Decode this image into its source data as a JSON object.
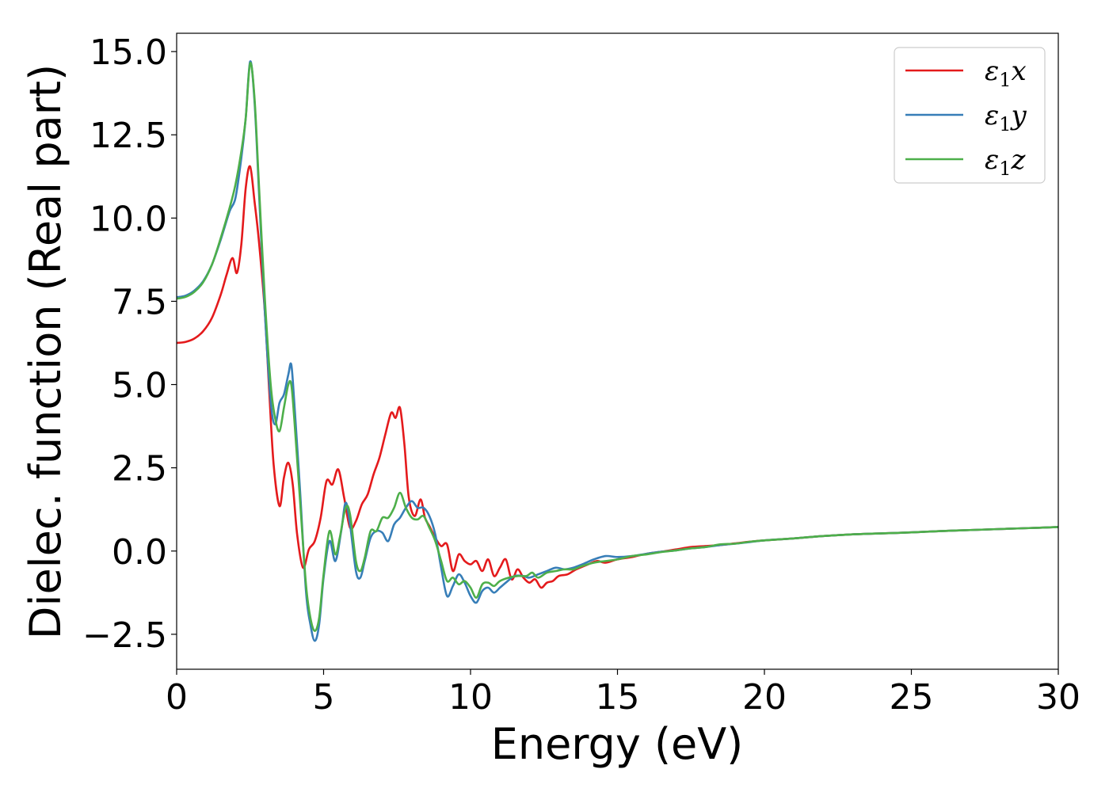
{
  "chart_data": {
    "type": "line",
    "title": "",
    "xlabel": "Energy (eV)",
    "ylabel": "Dielec. function (Real part)",
    "xlim": [
      0,
      30
    ],
    "ylim": [
      -3.55,
      15.55
    ],
    "xticks": [
      0,
      5,
      10,
      15,
      20,
      25,
      30
    ],
    "xtick_labels": [
      "0",
      "5",
      "10",
      "15",
      "20",
      "25",
      "30"
    ],
    "yticks": [
      -2.5,
      0.0,
      2.5,
      5.0,
      7.5,
      10.0,
      12.5,
      15.0
    ],
    "ytick_labels": [
      "−2.5",
      "0.0",
      "2.5",
      "5.0",
      "7.5",
      "10.0",
      "12.5",
      "15.0"
    ],
    "grid": false,
    "legend_position": "top-right",
    "series": [
      {
        "name": "ε₁x",
        "legend_main": "ε",
        "legend_sub": "1",
        "legend_tail": "x",
        "color": "#e41a1c",
        "points": [
          [
            0,
            6.25
          ],
          [
            0.3,
            6.28
          ],
          [
            0.6,
            6.38
          ],
          [
            0.9,
            6.6
          ],
          [
            1.2,
            7.0
          ],
          [
            1.5,
            7.7
          ],
          [
            1.7,
            8.3
          ],
          [
            1.9,
            8.8
          ],
          [
            2.05,
            8.35
          ],
          [
            2.2,
            9.2
          ],
          [
            2.35,
            10.9
          ],
          [
            2.5,
            11.55
          ],
          [
            2.65,
            10.5
          ],
          [
            2.8,
            9.3
          ],
          [
            3.0,
            7.2
          ],
          [
            3.15,
            4.8
          ],
          [
            3.3,
            2.6
          ],
          [
            3.5,
            1.35
          ],
          [
            3.65,
            2.2
          ],
          [
            3.8,
            2.65
          ],
          [
            3.95,
            2.0
          ],
          [
            4.1,
            0.5
          ],
          [
            4.3,
            -0.5
          ],
          [
            4.5,
            0.05
          ],
          [
            4.7,
            0.3
          ],
          [
            4.9,
            1.0
          ],
          [
            5.1,
            2.1
          ],
          [
            5.3,
            2.0
          ],
          [
            5.5,
            2.45
          ],
          [
            5.7,
            1.6
          ],
          [
            5.9,
            0.7
          ],
          [
            6.1,
            0.9
          ],
          [
            6.3,
            1.4
          ],
          [
            6.5,
            1.7
          ],
          [
            6.7,
            2.3
          ],
          [
            6.9,
            2.8
          ],
          [
            7.1,
            3.5
          ],
          [
            7.3,
            4.15
          ],
          [
            7.45,
            4.0
          ],
          [
            7.6,
            4.3
          ],
          [
            7.75,
            3.2
          ],
          [
            7.9,
            1.6
          ],
          [
            8.1,
            1.05
          ],
          [
            8.3,
            1.55
          ],
          [
            8.45,
            1.0
          ],
          [
            8.6,
            0.75
          ],
          [
            8.8,
            0.4
          ],
          [
            9.0,
            0.15
          ],
          [
            9.2,
            0.2
          ],
          [
            9.4,
            -0.6
          ],
          [
            9.6,
            -0.1
          ],
          [
            9.8,
            -0.3
          ],
          [
            10.0,
            -0.4
          ],
          [
            10.2,
            -0.3
          ],
          [
            10.4,
            -0.6
          ],
          [
            10.6,
            -0.25
          ],
          [
            10.8,
            -0.75
          ],
          [
            11.0,
            -0.5
          ],
          [
            11.2,
            -0.25
          ],
          [
            11.4,
            -0.85
          ],
          [
            11.6,
            -0.55
          ],
          [
            11.8,
            -0.8
          ],
          [
            12.0,
            -0.95
          ],
          [
            12.2,
            -0.85
          ],
          [
            12.4,
            -1.1
          ],
          [
            12.6,
            -0.95
          ],
          [
            12.8,
            -0.9
          ],
          [
            13.0,
            -0.75
          ],
          [
            13.3,
            -0.7
          ],
          [
            13.6,
            -0.55
          ],
          [
            14.0,
            -0.4
          ],
          [
            14.3,
            -0.3
          ],
          [
            14.6,
            -0.35
          ],
          [
            15.0,
            -0.25
          ],
          [
            15.5,
            -0.18
          ],
          [
            16.0,
            -0.08
          ],
          [
            16.5,
            -0.02
          ],
          [
            17.0,
            0.05
          ],
          [
            17.5,
            0.12
          ],
          [
            18.0,
            0.15
          ],
          [
            18.5,
            0.18
          ],
          [
            19.0,
            0.23
          ],
          [
            19.5,
            0.28
          ],
          [
            20.0,
            0.32
          ],
          [
            21.0,
            0.38
          ],
          [
            22.0,
            0.45
          ],
          [
            23.0,
            0.5
          ],
          [
            24.0,
            0.53
          ],
          [
            25.0,
            0.56
          ],
          [
            26.0,
            0.6
          ],
          [
            27.0,
            0.63
          ],
          [
            28.0,
            0.66
          ],
          [
            29.0,
            0.69
          ],
          [
            30.0,
            0.72
          ]
        ]
      },
      {
        "name": "ε₁y",
        "legend_main": "ε",
        "legend_sub": "1",
        "legend_tail": "y",
        "color": "#377eb8",
        "points": [
          [
            0,
            7.62
          ],
          [
            0.3,
            7.67
          ],
          [
            0.6,
            7.82
          ],
          [
            0.9,
            8.1
          ],
          [
            1.2,
            8.6
          ],
          [
            1.5,
            9.35
          ],
          [
            1.8,
            10.2
          ],
          [
            2.0,
            10.6
          ],
          [
            2.2,
            11.8
          ],
          [
            2.35,
            13.0
          ],
          [
            2.5,
            14.7
          ],
          [
            2.65,
            13.5
          ],
          [
            2.8,
            10.8
          ],
          [
            3.0,
            7.2
          ],
          [
            3.2,
            4.5
          ],
          [
            3.35,
            3.8
          ],
          [
            3.5,
            4.45
          ],
          [
            3.65,
            4.7
          ],
          [
            3.8,
            5.3
          ],
          [
            3.9,
            5.6
          ],
          [
            4.0,
            4.5
          ],
          [
            4.2,
            1.8
          ],
          [
            4.4,
            -1.2
          ],
          [
            4.55,
            -2.2
          ],
          [
            4.7,
            -2.7
          ],
          [
            4.85,
            -2.2
          ],
          [
            5.0,
            -0.8
          ],
          [
            5.2,
            0.3
          ],
          [
            5.4,
            -0.3
          ],
          [
            5.6,
            0.6
          ],
          [
            5.75,
            1.45
          ],
          [
            5.9,
            0.8
          ],
          [
            6.1,
            -0.6
          ],
          [
            6.25,
            -0.8
          ],
          [
            6.4,
            -0.3
          ],
          [
            6.6,
            0.4
          ],
          [
            6.8,
            0.6
          ],
          [
            7.0,
            0.55
          ],
          [
            7.2,
            0.3
          ],
          [
            7.4,
            0.8
          ],
          [
            7.6,
            1.0
          ],
          [
            7.8,
            1.3
          ],
          [
            8.0,
            1.5
          ],
          [
            8.2,
            1.3
          ],
          [
            8.4,
            1.3
          ],
          [
            8.6,
            1.05
          ],
          [
            8.8,
            0.5
          ],
          [
            9.0,
            -0.5
          ],
          [
            9.2,
            -1.35
          ],
          [
            9.4,
            -1.05
          ],
          [
            9.6,
            -0.7
          ],
          [
            9.8,
            -0.95
          ],
          [
            10.0,
            -1.35
          ],
          [
            10.2,
            -1.55
          ],
          [
            10.4,
            -1.2
          ],
          [
            10.6,
            -1.1
          ],
          [
            10.8,
            -1.25
          ],
          [
            11.0,
            -1.1
          ],
          [
            11.2,
            -0.95
          ],
          [
            11.5,
            -0.75
          ],
          [
            11.8,
            -0.75
          ],
          [
            12.0,
            -0.8
          ],
          [
            12.3,
            -0.7
          ],
          [
            12.6,
            -0.6
          ],
          [
            12.9,
            -0.5
          ],
          [
            13.2,
            -0.55
          ],
          [
            13.5,
            -0.5
          ],
          [
            13.8,
            -0.4
          ],
          [
            14.2,
            -0.25
          ],
          [
            14.6,
            -0.15
          ],
          [
            15.0,
            -0.18
          ],
          [
            15.5,
            -0.15
          ],
          [
            16.0,
            -0.08
          ],
          [
            16.5,
            -0.02
          ],
          [
            17.0,
            0.02
          ],
          [
            17.5,
            0.08
          ],
          [
            18.0,
            0.12
          ],
          [
            18.5,
            0.18
          ],
          [
            19.0,
            0.22
          ],
          [
            19.5,
            0.27
          ],
          [
            20.0,
            0.32
          ],
          [
            21.0,
            0.38
          ],
          [
            22.0,
            0.45
          ],
          [
            23.0,
            0.5
          ],
          [
            24.0,
            0.53
          ],
          [
            25.0,
            0.56
          ],
          [
            26.0,
            0.6
          ],
          [
            27.0,
            0.63
          ],
          [
            28.0,
            0.66
          ],
          [
            29.0,
            0.69
          ],
          [
            30.0,
            0.72
          ]
        ]
      },
      {
        "name": "ε₁z",
        "legend_main": "ε",
        "legend_sub": "1",
        "legend_tail": "z",
        "color": "#4daf4a",
        "points": [
          [
            0,
            7.58
          ],
          [
            0.3,
            7.63
          ],
          [
            0.6,
            7.78
          ],
          [
            0.9,
            8.07
          ],
          [
            1.2,
            8.6
          ],
          [
            1.5,
            9.4
          ],
          [
            1.8,
            10.3
          ],
          [
            2.0,
            11.0
          ],
          [
            2.2,
            12.0
          ],
          [
            2.35,
            13.0
          ],
          [
            2.5,
            14.65
          ],
          [
            2.65,
            13.6
          ],
          [
            2.8,
            11.0
          ],
          [
            3.0,
            7.6
          ],
          [
            3.2,
            5.0
          ],
          [
            3.35,
            4.0
          ],
          [
            3.5,
            3.6
          ],
          [
            3.65,
            4.3
          ],
          [
            3.8,
            5.0
          ],
          [
            3.9,
            5.0
          ],
          [
            4.0,
            4.0
          ],
          [
            4.2,
            1.5
          ],
          [
            4.4,
            -1.0
          ],
          [
            4.55,
            -2.0
          ],
          [
            4.7,
            -2.4
          ],
          [
            4.85,
            -2.0
          ],
          [
            5.0,
            -0.7
          ],
          [
            5.2,
            0.6
          ],
          [
            5.4,
            -0.1
          ],
          [
            5.55,
            0.4
          ],
          [
            5.75,
            1.3
          ],
          [
            5.9,
            1.1
          ],
          [
            6.1,
            -0.3
          ],
          [
            6.25,
            -0.6
          ],
          [
            6.4,
            -0.2
          ],
          [
            6.6,
            0.6
          ],
          [
            6.8,
            0.6
          ],
          [
            7.0,
            1.0
          ],
          [
            7.2,
            1.0
          ],
          [
            7.4,
            1.3
          ],
          [
            7.6,
            1.75
          ],
          [
            7.8,
            1.3
          ],
          [
            8.0,
            1.0
          ],
          [
            8.2,
            0.95
          ],
          [
            8.4,
            1.05
          ],
          [
            8.6,
            0.7
          ],
          [
            8.8,
            0.3
          ],
          [
            9.0,
            -0.3
          ],
          [
            9.2,
            -0.9
          ],
          [
            9.4,
            -0.8
          ],
          [
            9.6,
            -1.0
          ],
          [
            9.8,
            -0.9
          ],
          [
            10.0,
            -1.1
          ],
          [
            10.2,
            -1.4
          ],
          [
            10.4,
            -1.0
          ],
          [
            10.6,
            -0.95
          ],
          [
            10.8,
            -1.05
          ],
          [
            11.0,
            -0.9
          ],
          [
            11.3,
            -0.8
          ],
          [
            11.6,
            -0.75
          ],
          [
            11.9,
            -0.75
          ],
          [
            12.1,
            -0.65
          ],
          [
            12.3,
            -0.8
          ],
          [
            12.6,
            -0.65
          ],
          [
            12.9,
            -0.6
          ],
          [
            13.2,
            -0.55
          ],
          [
            13.5,
            -0.55
          ],
          [
            13.8,
            -0.45
          ],
          [
            14.2,
            -0.35
          ],
          [
            14.6,
            -0.3
          ],
          [
            15.0,
            -0.25
          ],
          [
            15.5,
            -0.15
          ],
          [
            16.0,
            -0.1
          ],
          [
            16.5,
            -0.03
          ],
          [
            17.0,
            0.02
          ],
          [
            17.5,
            0.08
          ],
          [
            18.0,
            0.12
          ],
          [
            18.5,
            0.2
          ],
          [
            19.0,
            0.22
          ],
          [
            19.5,
            0.28
          ],
          [
            20.0,
            0.32
          ],
          [
            21.0,
            0.38
          ],
          [
            22.0,
            0.45
          ],
          [
            23.0,
            0.5
          ],
          [
            24.0,
            0.53
          ],
          [
            25.0,
            0.56
          ],
          [
            26.0,
            0.6
          ],
          [
            27.0,
            0.63
          ],
          [
            28.0,
            0.66
          ],
          [
            29.0,
            0.69
          ],
          [
            30.0,
            0.72
          ]
        ]
      }
    ]
  }
}
